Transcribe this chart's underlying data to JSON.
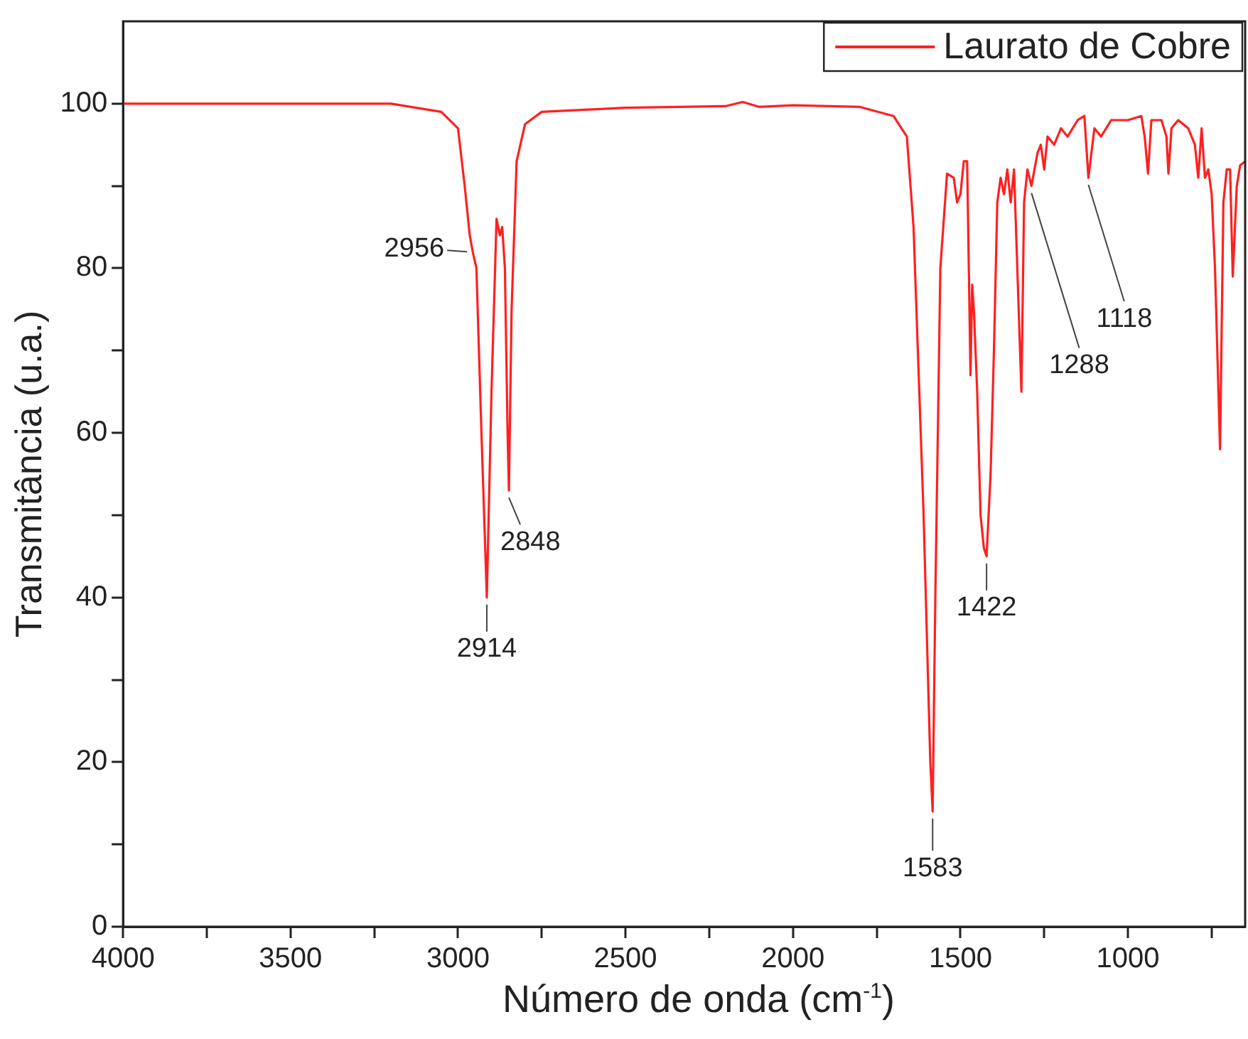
{
  "chart_data": {
    "type": "line",
    "xlabel": "Número de onda (cm$^{-1}$)",
    "ylabel": "Transmitância (u.a.)",
    "x": [
      4000,
      3500,
      3200,
      3050,
      3000,
      2980,
      2965,
      2956,
      2945,
      2930,
      2914,
      2900,
      2885,
      2875,
      2868,
      2860,
      2852,
      2848,
      2840,
      2825,
      2800,
      2750,
      2500,
      2200,
      2150,
      2100,
      2000,
      1800,
      1700,
      1660,
      1640,
      1610,
      1590,
      1583,
      1575,
      1560,
      1540,
      1520,
      1510,
      1500,
      1490,
      1480,
      1470,
      1465,
      1460,
      1450,
      1440,
      1430,
      1422,
      1410,
      1400,
      1390,
      1380,
      1370,
      1360,
      1350,
      1340,
      1318,
      1310,
      1300,
      1288,
      1270,
      1260,
      1250,
      1240,
      1220,
      1200,
      1180,
      1150,
      1130,
      1118,
      1100,
      1080,
      1050,
      1000,
      960,
      950,
      940,
      930,
      900,
      885,
      879,
      870,
      850,
      820,
      800,
      790,
      780,
      770,
      760,
      750,
      740,
      725,
      715,
      705,
      695,
      687,
      675,
      665,
      650
    ],
    "series": [
      {
        "name": "Laurato de Cobre",
        "color": "#ff2020",
        "values": [
          100,
          100,
          100,
          99,
          97,
          90,
          84,
          82,
          80,
          60,
          40,
          65,
          86,
          84,
          85,
          80,
          60,
          53,
          75,
          93,
          97.5,
          99,
          99.5,
          99.7,
          100.2,
          99.6,
          99.8,
          99.6,
          98.5,
          96,
          85,
          50,
          20,
          14,
          40,
          80,
          91.5,
          91,
          88,
          89,
          93,
          93,
          67,
          78,
          75,
          65,
          50,
          46,
          45,
          55,
          70,
          88,
          91,
          89,
          92,
          88,
          92,
          65,
          88,
          92,
          90,
          94,
          95,
          92,
          96,
          95,
          97,
          96,
          98,
          98.5,
          91,
          97,
          96,
          98,
          98,
          98.5,
          96,
          91.5,
          98,
          98,
          96,
          91.5,
          97,
          98,
          97,
          95,
          91,
          97,
          91,
          92,
          89,
          80,
          58,
          88,
          92,
          92,
          79,
          90,
          92.5,
          93
        ]
      }
    ],
    "xlim": [
      4000,
      650
    ],
    "xticks": [
      4000,
      {
        "value": 3750,
        "label": null
      },
      3500,
      {
        "value": 3250,
        "label": null
      },
      3000,
      {
        "value": 2750,
        "label": null
      },
      2500,
      {
        "value": 2250,
        "label": null
      },
      2000,
      {
        "value": 1750,
        "label": null
      },
      1500,
      {
        "value": 1250,
        "label": null
      },
      1000,
      {
        "value": 750,
        "label": null
      }
    ],
    "ylim": [
      0,
      110
    ],
    "yticks": [
      0,
      {
        "value": 10,
        "label": null
      },
      20,
      {
        "value": 30,
        "label": null
      },
      40,
      {
        "value": 50,
        "label": null
      },
      60,
      {
        "value": 70,
        "label": null
      },
      80,
      {
        "value": 90,
        "label": null
      },
      100
    ],
    "annotations": [
      {
        "text": "2956",
        "x": 2956,
        "y": 82
      },
      {
        "text": "2914",
        "x": 2914,
        "y": 40
      },
      {
        "text": "2848",
        "x": 2848,
        "y": 53
      },
      {
        "text": "1583",
        "x": 1583,
        "y": 14
      },
      {
        "text": "1422",
        "x": 1422,
        "y": 45
      },
      {
        "text": "1288",
        "x": 1288,
        "y": 90
      },
      {
        "text": "1118",
        "x": 1118,
        "y": 91
      }
    ],
    "grid": false,
    "legend": "top right",
    "marker": "none",
    "line_style": "solid"
  }
}
